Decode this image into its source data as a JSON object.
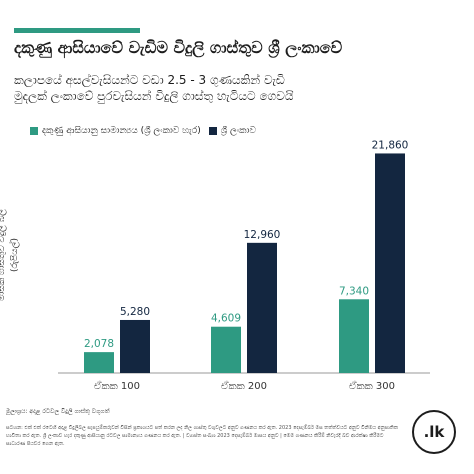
{
  "accent_color": "#2e9a82",
  "header": {
    "title": "දකුණු ආසියාවේ වැඩිම විදුලි ගාස්තුව ශ්‍රී ලංකාවේ",
    "subtitle_line1": "කලාපයේ අසල්වැසියන්ට වඩා 2.5 - 3 ගුණයකින් වැඩි",
    "subtitle_line2": "මුදලක් ලංකාවේ පුරවැසියන් විදුලි ගාස්තු හැටියට ගෙවයි"
  },
  "chart_data": {
    "type": "bar",
    "categories": [
      "ඒකක 100",
      "ඒකක 200",
      "ඒකක 300"
    ],
    "series": [
      {
        "name": "දකුණු ආසියානු සාමාන්‍යය (ශ්‍රී ලංකාව හැර)",
        "color": "#2e9a82",
        "values": [
          2078,
          4609,
          7340
        ]
      },
      {
        "name": "ශ්‍රී ලංකාව",
        "color": "#132640",
        "values": [
          5280,
          12960,
          21860
        ]
      }
    ],
    "value_labels": [
      [
        "2,078",
        "4,609",
        "7,340"
      ],
      [
        "5,280",
        "12,960",
        "21,860"
      ]
    ],
    "ylabel_line1": "මාසික ගාස්තුව විදුලි බිල",
    "ylabel_line2": "(රුපියල්)",
    "ylim": [
      0,
      23000
    ],
    "grid": false,
    "legend_position": "top-left"
  },
  "source": "මූලාශ්‍රය: අදාළ රටවල විදුලි ගාස්තු වගුගත්",
  "footnote": "සටහන: එක් එක් රටෙහි අදාළ විදුලිබල සැපයුම්කරුවන් විසින් ප්‍රකාශයට පත් කරන ලද නිල ගාස්තු වගුවලට අනුව ගණනය කර ඇත. 2023 දෙසැම්බර් මස තත්ත්වයට අනුව විනිමය අනුපාතික භාවිතා කර ඇත. ශ්‍රී ලංකාව හැර දකුණු ආසියානු රටවල සාමාන්‍යය ගණනය කර ඇත. | ව්‍යාප්ත සංඛ්‍යා 2023 දෙසැම්බර් මාසය අනුව | මෙම ගණනය කිරීම් නිවැරදි බව ආරක්ෂා කිරීමට සාධාරණ පියවර ගෙන ඇත.",
  "logo_text": ".lk"
}
